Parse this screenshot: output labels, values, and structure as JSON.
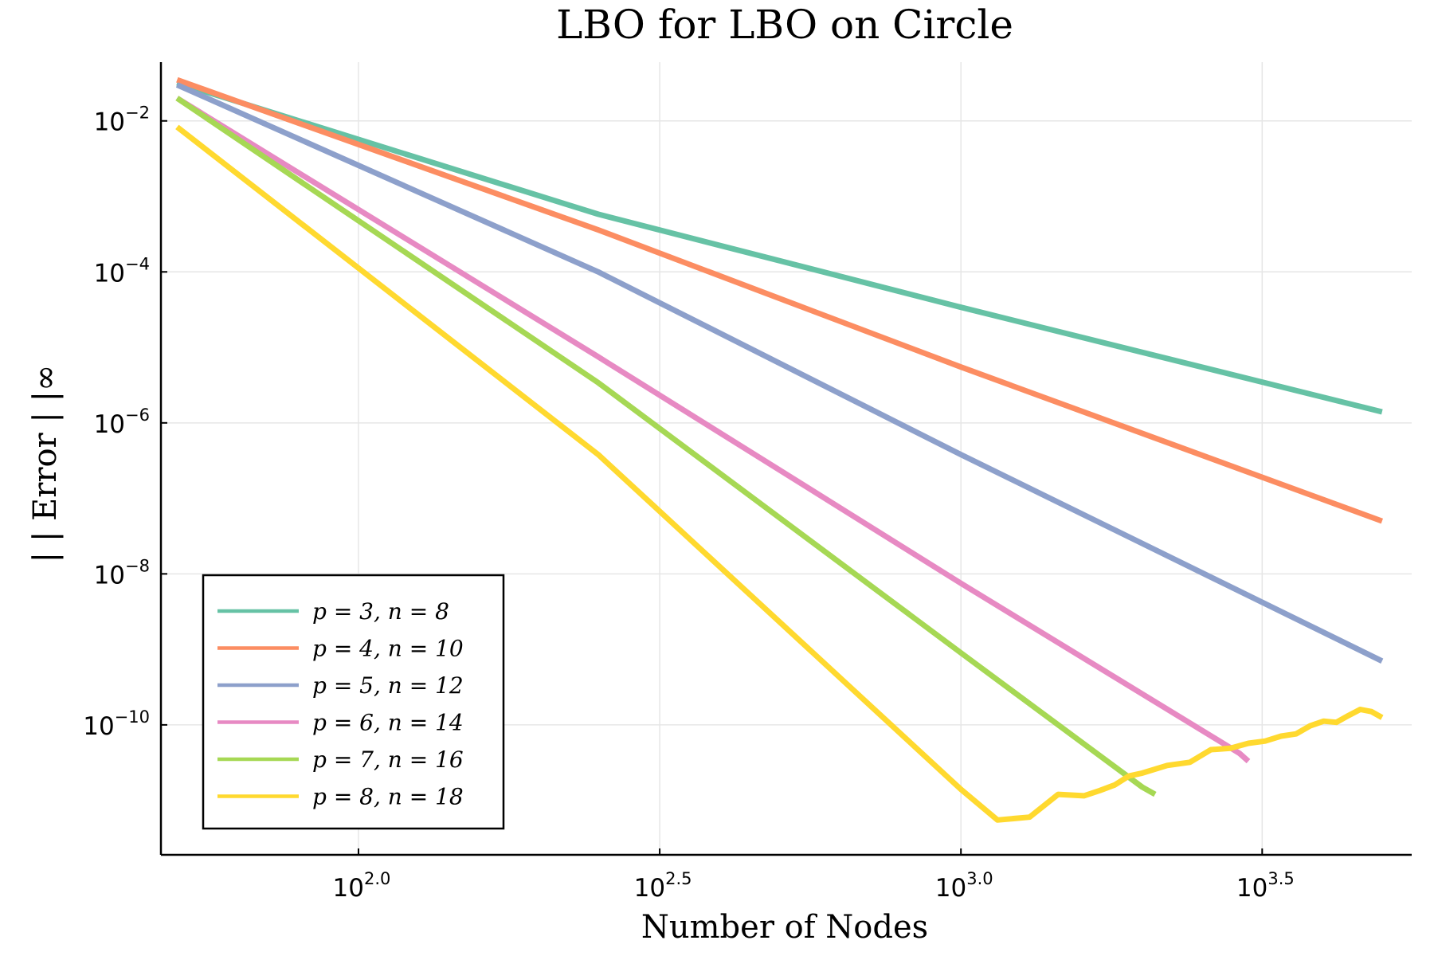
{
  "chart_data": {
    "type": "line",
    "title": "LBO for LBO on Circle",
    "xlabel": "Number of Nodes",
    "ylabel": "| | Error | |∞",
    "x_scale": "log10",
    "y_scale": "log10",
    "xlim": [
      47,
      5600
    ],
    "ylim": [
      1.9e-12,
      0.06
    ],
    "grid": true,
    "legend_position": "bottom-left",
    "x_ticks": [
      {
        "value": 100,
        "base": "10",
        "exp": "2.0"
      },
      {
        "value": 316.23,
        "base": "10",
        "exp": "2.5"
      },
      {
        "value": 1000,
        "base": "10",
        "exp": "3.0"
      },
      {
        "value": 3162.3,
        "base": "10",
        "exp": "3.5"
      }
    ],
    "y_ticks": [
      {
        "value": 0.01,
        "base": "10",
        "exp": "−2"
      },
      {
        "value": 0.0001,
        "base": "10",
        "exp": "−4"
      },
      {
        "value": 1e-06,
        "base": "10",
        "exp": "−6"
      },
      {
        "value": 1e-08,
        "base": "10",
        "exp": "−8"
      },
      {
        "value": 1e-10,
        "base": "10",
        "exp": "−10"
      }
    ],
    "series": [
      {
        "name": "p = 3, n = 8",
        "color": "#66c2a5",
        "points": [
          [
            50,
            0.032
          ],
          [
            250,
            0.00058
          ],
          [
            1000,
            3.4e-05
          ],
          [
            5000,
            1.4e-06
          ]
        ]
      },
      {
        "name": "p = 4, n = 10",
        "color": "#fc8d62",
        "points": [
          [
            50,
            0.035
          ],
          [
            250,
            0.00036
          ],
          [
            1000,
            5.5e-06
          ],
          [
            5000,
            5e-08
          ]
        ]
      },
      {
        "name": "p = 5, n = 12",
        "color": "#8da0cb",
        "points": [
          [
            50,
            0.03
          ],
          [
            250,
            0.0001
          ],
          [
            1000,
            3.8e-07
          ],
          [
            5000,
            7e-10
          ]
        ]
      },
      {
        "name": "p = 6, n = 14",
        "color": "#e78ac3",
        "points": [
          [
            50,
            0.02
          ],
          [
            250,
            7.5e-06
          ],
          [
            1000,
            7.5e-09
          ],
          [
            2900,
            4.2e-11
          ],
          [
            3000,
            3.3e-11
          ]
        ]
      },
      {
        "name": "p = 7, n = 16",
        "color": "#a6d854",
        "points": [
          [
            50,
            0.02
          ],
          [
            250,
            3.4e-06
          ],
          [
            1000,
            9e-10
          ],
          [
            2000,
            1.5e-11
          ],
          [
            2100,
            1.2e-11
          ]
        ]
      },
      {
        "name": "p = 8, n = 18",
        "color": "#ffd92f",
        "points": [
          [
            50,
            0.0083
          ],
          [
            250,
            3.8e-07
          ],
          [
            1000,
            1.4e-11
          ],
          [
            1150,
            5.5e-12
          ],
          [
            1300,
            6e-12
          ],
          [
            1450,
            1.2e-11
          ],
          [
            1600,
            1.15e-11
          ],
          [
            1700,
            1.35e-11
          ],
          [
            1800,
            1.6e-11
          ],
          [
            1900,
            2.1e-11
          ],
          [
            2000,
            2.3e-11
          ],
          [
            2200,
            2.9e-11
          ],
          [
            2400,
            3.2e-11
          ],
          [
            2600,
            4.7e-11
          ],
          [
            2800,
            4.9e-11
          ],
          [
            3000,
            5.7e-11
          ],
          [
            3200,
            6.1e-11
          ],
          [
            3400,
            7.1e-11
          ],
          [
            3600,
            7.6e-11
          ],
          [
            3800,
            9.7e-11
          ],
          [
            4000,
            1.12e-10
          ],
          [
            4200,
            1.08e-10
          ],
          [
            4400,
            1.33e-10
          ],
          [
            4600,
            1.6e-10
          ],
          [
            4800,
            1.5e-10
          ],
          [
            5000,
            1.25e-10
          ]
        ]
      }
    ]
  }
}
